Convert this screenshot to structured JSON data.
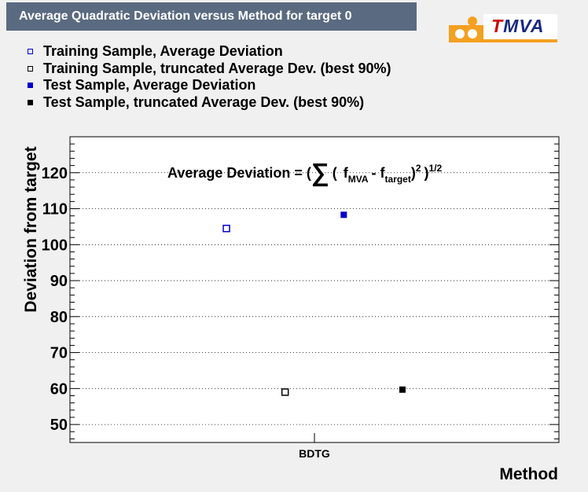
{
  "title": "Average Quadratic Deviation versus Method for target 0",
  "logo": {
    "t": "T",
    "rest": "MVA"
  },
  "legend": [
    {
      "label": "Training Sample, Average Deviation",
      "marker": "open-blue"
    },
    {
      "label": "Training Sample, truncated Average Dev. (best 90%)",
      "marker": "open-black"
    },
    {
      "label": "Test Sample, Average Deviation",
      "marker": "solid-blue"
    },
    {
      "label": "Test Sample, truncated Average Dev. (best 90%)",
      "marker": "solid-black"
    }
  ],
  "colors": {
    "blue": "#0000cc",
    "black": "#000000",
    "title_bg": "#5a6a80"
  },
  "chart_data": {
    "type": "scatter",
    "title": "Average Quadratic Deviation versus Method for target 0",
    "xlabel": "Method",
    "ylabel": "Deviation from target",
    "categories": [
      "BDTG"
    ],
    "ylim": [
      45,
      130
    ],
    "y_ticks": [
      50,
      60,
      70,
      80,
      90,
      100,
      110,
      120
    ],
    "grid": true,
    "series": [
      {
        "name": "Training Sample, Average Deviation",
        "values": [
          104.5
        ],
        "marker": "open",
        "color": "#0000cc"
      },
      {
        "name": "Training Sample, truncated Average Dev. (best 90%)",
        "values": [
          59
        ],
        "marker": "open",
        "color": "#000000"
      },
      {
        "name": "Test Sample, Average Deviation",
        "values": [
          108.3
        ],
        "marker": "filled",
        "color": "#0000cc"
      },
      {
        "name": "Test Sample, truncated Average Dev. (best 90%)",
        "values": [
          59.7
        ],
        "marker": "filled",
        "color": "#000000"
      }
    ],
    "annotation": {
      "prefix": "Average Deviation = (",
      "sum": "∑",
      "open": "(",
      "f": "f",
      "sub_mva": "MVA",
      "minus": "- f",
      "sub_target": "target",
      "close": ")",
      "sq": "2",
      "close2": ")",
      "power": "1/2"
    }
  }
}
